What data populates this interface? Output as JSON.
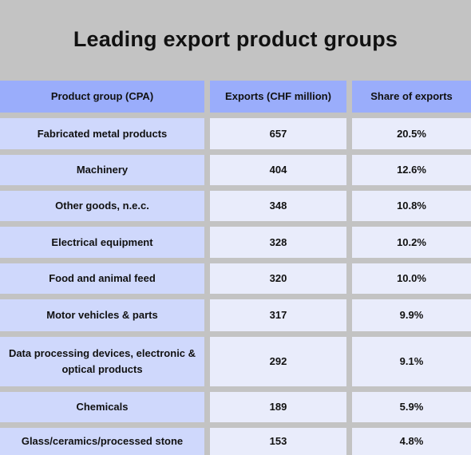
{
  "title": "Leading export product groups",
  "colors": {
    "background": "#c3c3c3",
    "header": "#9aadfb",
    "first_column": "#cfd8fc",
    "cells": "#e9ecfb"
  },
  "chart_data": {
    "type": "table",
    "title": "Leading export product groups",
    "columns": [
      "Product group (CPA)",
      "Exports (CHF million)",
      "Share of exports"
    ],
    "rows": [
      [
        "Fabricated metal products",
        "657",
        "20.5%"
      ],
      [
        "Machinery",
        "404",
        "12.6%"
      ],
      [
        "Other goods, n.e.c.",
        "348",
        "10.8%"
      ],
      [
        "Electrical equipment",
        "328",
        "10.2%"
      ],
      [
        "Food and animal feed",
        "320",
        "10.0%"
      ],
      [
        "Motor vehicles & parts",
        "317",
        "9.9%"
      ],
      [
        "Data processing devices, electronic & optical products",
        "292",
        "9.1%"
      ],
      [
        "Chemicals",
        "189",
        "5.9%"
      ],
      [
        "Glass/ceramics/processed stone",
        "153",
        "4.8%"
      ]
    ]
  }
}
